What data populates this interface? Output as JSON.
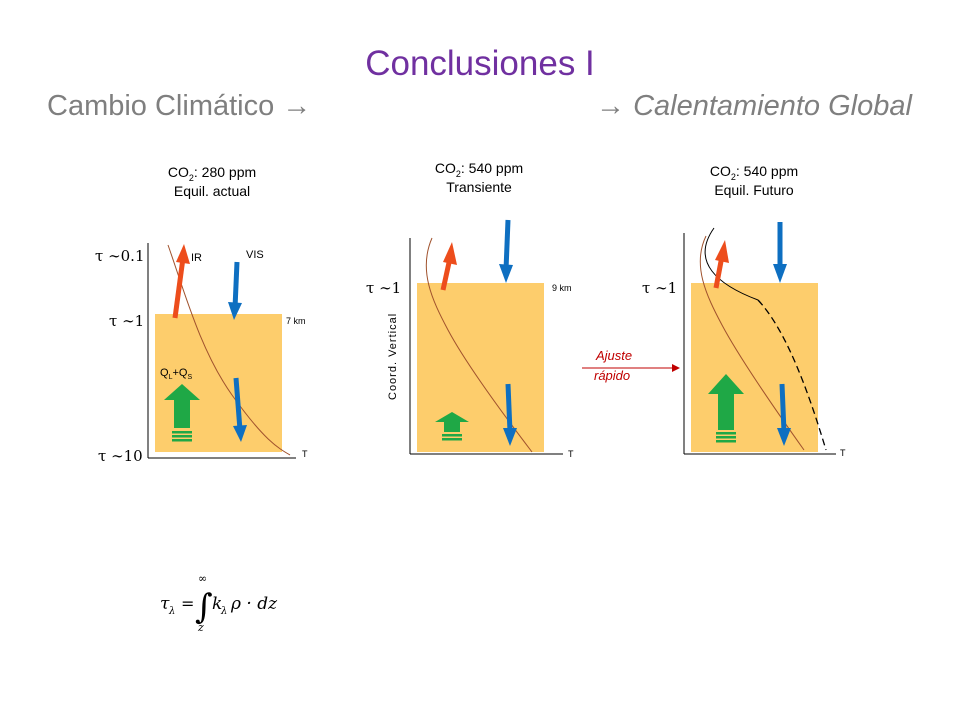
{
  "title": "Conclusiones I",
  "subtitle": {
    "left_text": "Cambio Climático",
    "left_arrow": "→",
    "right_arrow": "→",
    "right_text": "Calentamiento Global"
  },
  "panels": [
    {
      "co2_label": "CO",
      "co2_sub": "2",
      "co2_value": ": 280 ppm",
      "state": "Equil. actual",
      "tau_top": "τ ∼0.1",
      "tau_mid": "τ ∼1",
      "tau_bottom": "τ ∼10",
      "ir_label": "IR",
      "vis_label": "VIS",
      "height_label": "7 km",
      "flux_label_q": "Q",
      "flux_label_l": "L",
      "flux_label_plus": "+Q",
      "flux_label_s": "S",
      "x_axis_label": "T"
    },
    {
      "co2_label": "CO",
      "co2_sub": "2",
      "co2_value": ": 540 ppm",
      "state": "Transiente",
      "tau_mid": "τ ∼1",
      "height_label": "9 km",
      "y_axis_label": "Coord. Vertical",
      "x_axis_label": "T"
    },
    {
      "co2_label": "CO",
      "co2_sub": "2",
      "co2_value": ": 540 ppm",
      "state": "Equil. Futuro",
      "tau_mid": "τ ∼1",
      "x_axis_label": "T"
    }
  ],
  "transition": {
    "line1": "Ajuste",
    "line2": "rápido"
  },
  "formula": {
    "tau": "τ",
    "lambda": "λ",
    "equals": "=",
    "integral": "∫",
    "upper": "∞",
    "lower": "z",
    "k": "k",
    "rho_dz": "ρ · dz"
  },
  "colors": {
    "title": "#7030a0",
    "subtitle": "#7f7f7f",
    "layer": "#fdcd6c",
    "ir_arrow": "#ed4d1c",
    "vis_arrow": "#0e6fc1",
    "flux_arrow": "#1fa846",
    "profile_line": "#a0522d",
    "ajuste": "#c00000"
  },
  "icons": [
    "up-arrow-icon",
    "down-arrow-icon",
    "right-arrow-icon"
  ]
}
